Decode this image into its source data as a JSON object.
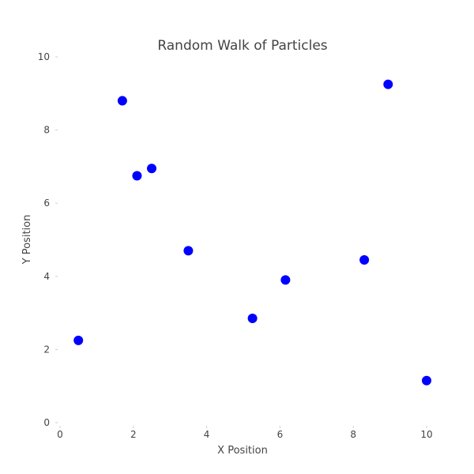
{
  "chart_data": {
    "type": "scatter",
    "title": "Random Walk of Particles",
    "xlabel": "X Position",
    "ylabel": "Y Position",
    "xlim": [
      0,
      10
    ],
    "ylim": [
      0,
      10
    ],
    "xticks": [
      0,
      2,
      4,
      6,
      8,
      10
    ],
    "yticks": [
      0,
      2,
      4,
      6,
      8,
      10
    ],
    "grid": false,
    "marker_color": "#0000ff",
    "points": [
      {
        "x": 0.5,
        "y": 2.25
      },
      {
        "x": 1.7,
        "y": 8.8
      },
      {
        "x": 2.1,
        "y": 6.75
      },
      {
        "x": 2.5,
        "y": 6.95
      },
      {
        "x": 3.5,
        "y": 4.7
      },
      {
        "x": 5.25,
        "y": 2.85
      },
      {
        "x": 6.15,
        "y": 3.9
      },
      {
        "x": 8.3,
        "y": 4.45
      },
      {
        "x": 8.95,
        "y": 9.25
      },
      {
        "x": 10.0,
        "y": 1.15
      }
    ]
  }
}
